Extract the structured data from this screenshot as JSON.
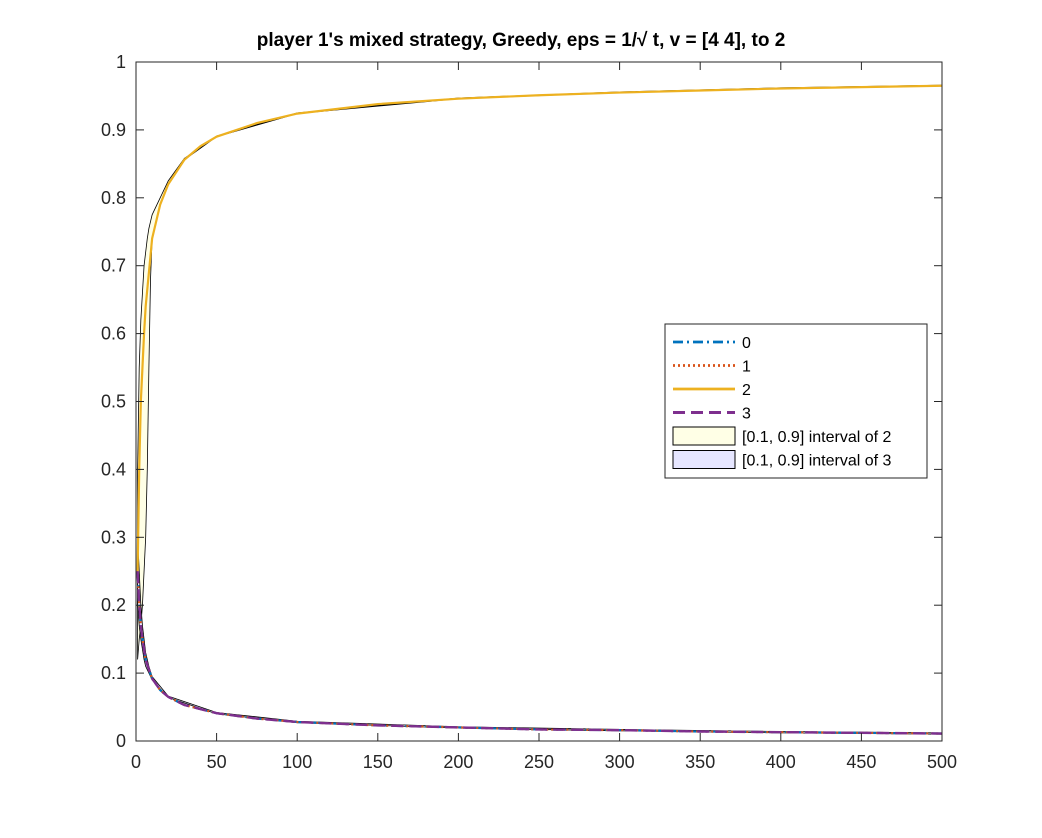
{
  "chart_data": {
    "type": "line",
    "title": "player 1's mixed strategy, Greedy, eps = 1/√ t, v = [4  4], to 2",
    "xlabel": "",
    "ylabel": "",
    "xlim": [
      0,
      500
    ],
    "ylim": [
      0,
      1
    ],
    "x_ticks": [
      0,
      50,
      100,
      150,
      200,
      250,
      300,
      350,
      400,
      450,
      500
    ],
    "y_ticks": [
      0,
      0.1,
      0.2,
      0.3,
      0.4,
      0.5,
      0.6,
      0.7,
      0.8,
      0.9,
      1
    ],
    "x_tick_labels": [
      "0",
      "50",
      "100",
      "150",
      "200",
      "250",
      "300",
      "350",
      "400",
      "450",
      "500"
    ],
    "y_tick_labels": [
      "0",
      "0.1",
      "0.2",
      "0.3",
      "0.4",
      "0.5",
      "0.6",
      "0.7",
      "0.8",
      "0.9",
      "1"
    ],
    "grid": false,
    "legend_position": "right",
    "series": [
      {
        "name": "0",
        "style": "dash-dot",
        "color": "#0072BD",
        "x": [
          1,
          2,
          3,
          4,
          5,
          6,
          8,
          10,
          15,
          20,
          30,
          50,
          75,
          100,
          150,
          200,
          250,
          300,
          350,
          400,
          450,
          500
        ],
        "y": [
          0.25,
          0.2,
          0.17,
          0.15,
          0.135,
          0.12,
          0.105,
          0.092,
          0.075,
          0.065,
          0.053,
          0.041,
          0.033,
          0.028,
          0.023,
          0.02,
          0.017,
          0.016,
          0.014,
          0.013,
          0.012,
          0.011
        ]
      },
      {
        "name": "1",
        "style": "dotted",
        "color": "#D95319",
        "x": [
          1,
          2,
          3,
          4,
          5,
          6,
          8,
          10,
          15,
          20,
          30,
          50,
          75,
          100,
          150,
          200,
          250,
          300,
          350,
          400,
          450,
          500
        ],
        "y": [
          0.25,
          0.2,
          0.17,
          0.15,
          0.135,
          0.12,
          0.105,
          0.092,
          0.075,
          0.065,
          0.053,
          0.041,
          0.033,
          0.028,
          0.023,
          0.02,
          0.017,
          0.016,
          0.014,
          0.013,
          0.012,
          0.011
        ]
      },
      {
        "name": "2",
        "style": "solid",
        "color": "#EDB120",
        "x": [
          1,
          2,
          3,
          4,
          5,
          6,
          8,
          10,
          15,
          20,
          30,
          40,
          50,
          75,
          100,
          150,
          200,
          250,
          300,
          350,
          400,
          450,
          500
        ],
        "y": [
          0.25,
          0.4,
          0.5,
          0.55,
          0.6,
          0.64,
          0.69,
          0.74,
          0.79,
          0.82,
          0.856,
          0.876,
          0.89,
          0.91,
          0.924,
          0.938,
          0.946,
          0.951,
          0.955,
          0.958,
          0.961,
          0.963,
          0.965
        ]
      },
      {
        "name": "3",
        "style": "dashed",
        "color": "#7E2F8E",
        "x": [
          1,
          2,
          3,
          4,
          5,
          6,
          8,
          10,
          15,
          20,
          30,
          50,
          75,
          100,
          150,
          200,
          250,
          300,
          350,
          400,
          450,
          500
        ],
        "y": [
          0.25,
          0.2,
          0.17,
          0.15,
          0.135,
          0.12,
          0.105,
          0.092,
          0.075,
          0.065,
          0.053,
          0.041,
          0.033,
          0.028,
          0.023,
          0.02,
          0.017,
          0.016,
          0.014,
          0.013,
          0.012,
          0.011
        ]
      }
    ],
    "bands": [
      {
        "name": "[0.1, 0.9] interval of 2",
        "color": "#FFFFE6",
        "x": [
          1,
          2,
          3,
          4,
          5,
          6,
          7,
          8,
          9,
          10,
          15,
          20,
          30,
          50,
          100,
          200,
          300,
          400,
          500
        ],
        "lower": [
          0.12,
          0.15,
          0.17,
          0.2,
          0.25,
          0.3,
          0.4,
          0.55,
          0.68,
          0.74,
          0.79,
          0.82,
          0.856,
          0.89,
          0.924,
          0.946,
          0.955,
          0.961,
          0.965
        ],
        "upper": [
          0.4,
          0.55,
          0.62,
          0.66,
          0.7,
          0.72,
          0.74,
          0.755,
          0.765,
          0.775,
          0.8,
          0.825,
          0.858,
          0.891,
          0.925,
          0.947,
          0.956,
          0.962,
          0.966
        ]
      },
      {
        "name": "[0.1, 0.9] interval of 3",
        "color": "#E6E6FF",
        "x": [
          1,
          2,
          3,
          4,
          5,
          6,
          8,
          10,
          20,
          50,
          100,
          200,
          300,
          400,
          500
        ],
        "lower": [
          0.2,
          0.17,
          0.15,
          0.135,
          0.12,
          0.11,
          0.1,
          0.09,
          0.064,
          0.04,
          0.027,
          0.019,
          0.015,
          0.012,
          0.01
        ],
        "upper": [
          0.3,
          0.25,
          0.2,
          0.17,
          0.15,
          0.13,
          0.11,
          0.095,
          0.066,
          0.042,
          0.029,
          0.021,
          0.017,
          0.014,
          0.012
        ]
      }
    ]
  }
}
